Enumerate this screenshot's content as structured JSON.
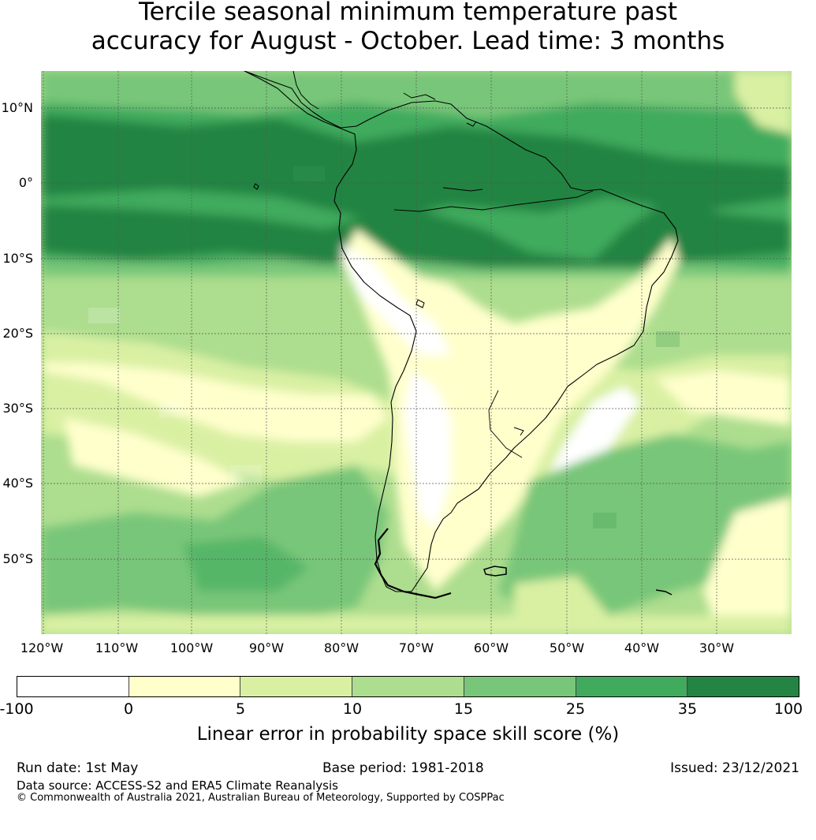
{
  "title": {
    "line1": "Tercile seasonal minimum temperature past",
    "line2": "accuracy for August - October. Lead time: 3 months"
  },
  "map": {
    "latitude_labels": [
      "10°N",
      "0°",
      "10°S",
      "20°S",
      "30°S",
      "40°S",
      "50°S"
    ],
    "longitude_labels": [
      "120°W",
      "110°W",
      "100°W",
      "90°W",
      "80°W",
      "70°W",
      "60°W",
      "50°W",
      "40°W",
      "30°W"
    ],
    "colors": {
      "ocean_light": "#ffffcc",
      "grid": "#555555",
      "coast": "#000000"
    }
  },
  "colorbar": {
    "ticks": [
      "-100",
      "0",
      "5",
      "10",
      "15",
      "25",
      "35",
      "100"
    ],
    "colors": [
      "#ffffff",
      "#ffffcc",
      "#d9f0a3",
      "#addd8e",
      "#78c679",
      "#41ab5d",
      "#238443"
    ],
    "label": "Linear error in probability space skill score (%)"
  },
  "footer": {
    "run_date": "Run date: 1st May",
    "base_period": "Base period: 1981-2018",
    "issued": "Issued: 23/12/2021",
    "data_source": "Data source: ACCESS-S2 and ERA5 Climate Reanalysis",
    "copyright": "© Commonwealth of Australia 2021, Australian Bureau of Meteorology, Supported by COSPPac"
  }
}
